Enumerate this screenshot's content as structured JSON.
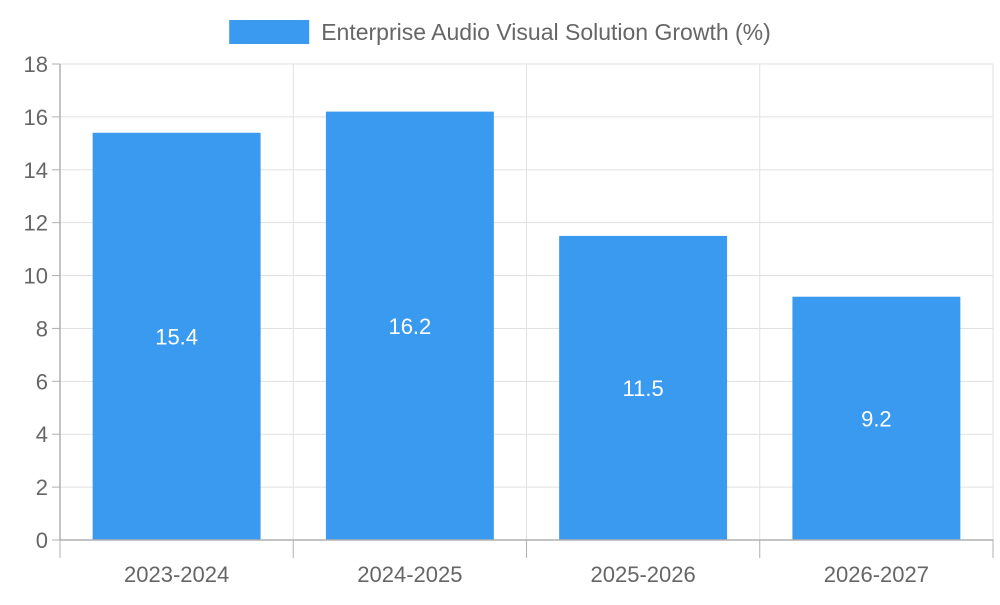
{
  "colors": {
    "bar": "#3a9af0",
    "grid": "#e1e1e1",
    "axis": "#b0b0b0",
    "text": "#666666",
    "data_label": "#ffffff"
  },
  "chart_data": {
    "type": "bar",
    "title": "",
    "xlabel": "",
    "ylabel": "",
    "categories": [
      "2023-2024",
      "2024-2025",
      "2025-2026",
      "2026-2027"
    ],
    "series": [
      {
        "name": "Enterprise Audio Visual Solution Growth (%)",
        "values": [
          15.4,
          16.2,
          11.5,
          9.2
        ]
      }
    ],
    "data_labels": [
      "15.4",
      "16.2",
      "11.5",
      "9.2"
    ],
    "ylim": [
      0,
      18
    ],
    "y_ticks": [
      "0",
      "2",
      "4",
      "6",
      "8",
      "10",
      "12",
      "14",
      "16",
      "18"
    ],
    "grid": true,
    "legend_position": "top-center"
  }
}
